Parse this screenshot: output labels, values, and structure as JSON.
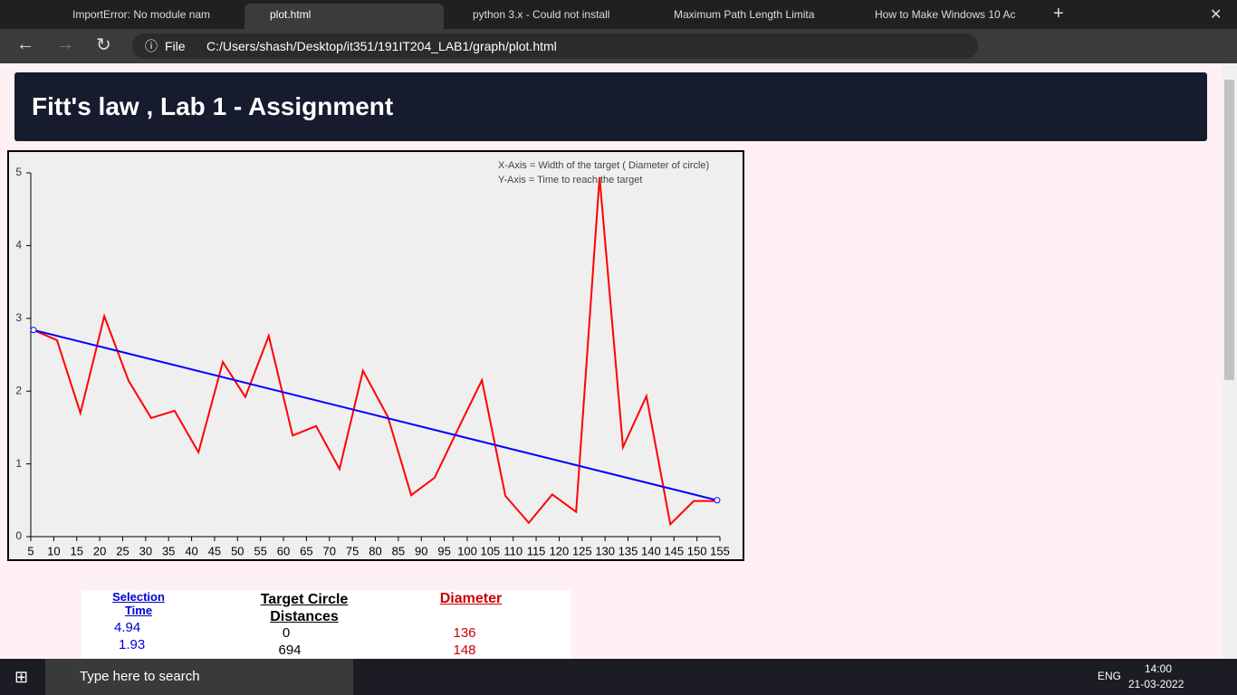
{
  "browser": {
    "tabs": [
      "ImportError: No module nam",
      "plot.html",
      "python 3.x - Could not install",
      "Maximum Path Length Limita",
      "How to Make Windows 10 Ac"
    ],
    "address": {
      "scheme": "File",
      "url": "C:/Users/shash/Desktop/it351/191IT204_LAB1/graph/plot.html"
    }
  },
  "header": {
    "title": "Fitt's law , Lab 1 - Assignment"
  },
  "chart_data": {
    "type": "line",
    "annotations": [
      "X-Axis = Width of the target ( Diameter of circle)",
      "Y-Axis = Time to reach the target"
    ],
    "x": [
      5.6,
      10.7,
      15.8,
      21.0,
      26.3,
      31.2,
      36.3,
      41.5,
      46.8,
      51.7,
      56.8,
      62.0,
      67.1,
      72.2,
      77.3,
      82.7,
      87.8,
      92.9,
      98.0,
      103.2,
      108.3,
      113.4,
      118.5,
      123.7,
      128.8,
      133.9,
      139.0,
      144.2,
      149.3,
      154.4
    ],
    "series": [
      {
        "color": "#ff0000",
        "values": [
          2.84,
          2.7,
          1.7,
          3.03,
          2.14,
          1.63,
          1.73,
          1.16,
          2.4,
          1.92,
          2.76,
          1.39,
          1.52,
          0.93,
          2.28,
          1.65,
          0.57,
          0.81,
          1.48,
          2.15,
          0.56,
          0.19,
          0.58,
          0.34,
          4.94,
          1.23,
          1.93,
          0.17,
          0.49,
          0.49
        ]
      },
      {
        "color": "#0000ff",
        "x": [
          5.6,
          154.4
        ],
        "values": [
          2.84,
          0.5
        ]
      }
    ],
    "xlim": [
      5,
      155
    ],
    "xticks": [
      5,
      10,
      15,
      20,
      25,
      30,
      35,
      40,
      45,
      50,
      55,
      60,
      65,
      70,
      75,
      80,
      85,
      90,
      95,
      100,
      105,
      110,
      115,
      120,
      125,
      130,
      135,
      140,
      145,
      150,
      155
    ],
    "ylim": [
      0,
      5
    ],
    "yticks": [
      0,
      1,
      2,
      3,
      4,
      5
    ]
  },
  "table": {
    "columns": [
      {
        "header": "Selection Time",
        "values": [
          "4.94",
          "1.93"
        ]
      },
      {
        "header": "Target Circle Distances",
        "values": [
          "0",
          "694"
        ]
      },
      {
        "header": "Diameter",
        "values": [
          "136",
          "148"
        ]
      }
    ]
  },
  "taskbar": {
    "search": "Type here to search",
    "language": "ENG",
    "time": "14:00",
    "date": "21-03-2022"
  }
}
